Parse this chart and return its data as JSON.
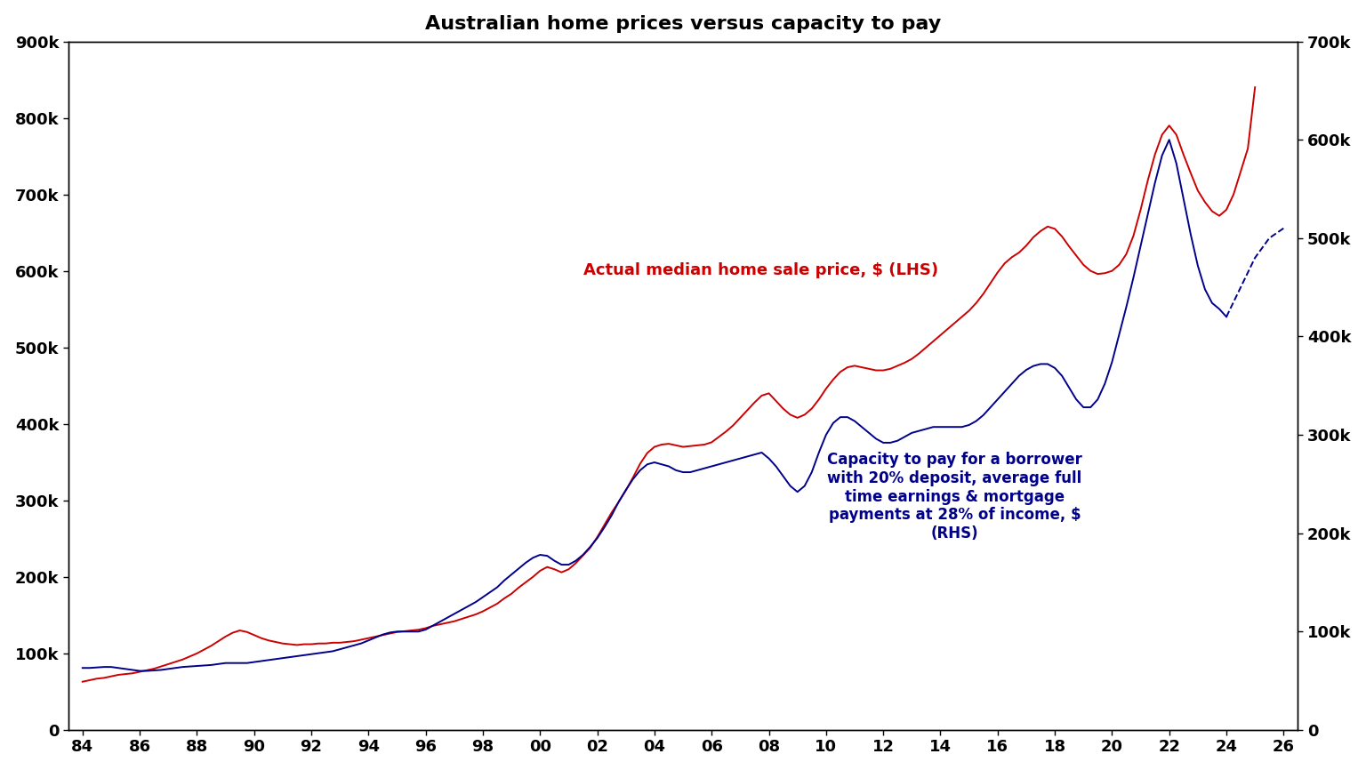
{
  "title": "Australian home prices versus capacity to pay",
  "title_fontsize": 16,
  "title_fontweight": "bold",
  "lhs_color": "#cc0000",
  "rhs_color": "#00008B",
  "lhs_label": "Actual median home sale price, $ (LHS)",
  "rhs_label": "Capacity to pay for a borrower\nwith 20% deposit, average full\ntime earnings & mortgage\npayments at 28% of income, $\n(RHS)",
  "lhs_ylim": [
    0,
    900000
  ],
  "rhs_ylim": [
    0,
    700000
  ],
  "lhs_yticks": [
    0,
    100000,
    200000,
    300000,
    400000,
    500000,
    600000,
    700000,
    800000,
    900000
  ],
  "rhs_yticks": [
    0,
    100000,
    200000,
    300000,
    400000,
    500000,
    600000,
    700000
  ],
  "xlim": [
    1983.5,
    2026.5
  ],
  "xtick_positions": [
    1984,
    1986,
    1988,
    1990,
    1992,
    1994,
    1996,
    1998,
    2000,
    2002,
    2004,
    2006,
    2008,
    2010,
    2012,
    2014,
    2016,
    2018,
    2020,
    2022,
    2024,
    2026
  ],
  "xtick_labels": [
    "84",
    "86",
    "88",
    "90",
    "92",
    "94",
    "96",
    "98",
    "00",
    "02",
    "04",
    "06",
    "08",
    "10",
    "12",
    "14",
    "16",
    "18",
    "20",
    "22",
    "24",
    "26"
  ],
  "background_color": "#ffffff",
  "lhs_x": [
    1984.0,
    1984.25,
    1984.5,
    1984.75,
    1985.0,
    1985.25,
    1985.5,
    1985.75,
    1986.0,
    1986.25,
    1986.5,
    1986.75,
    1987.0,
    1987.25,
    1987.5,
    1987.75,
    1988.0,
    1988.25,
    1988.5,
    1988.75,
    1989.0,
    1989.25,
    1989.5,
    1989.75,
    1990.0,
    1990.25,
    1990.5,
    1990.75,
    1991.0,
    1991.25,
    1991.5,
    1991.75,
    1992.0,
    1992.25,
    1992.5,
    1992.75,
    1993.0,
    1993.25,
    1993.5,
    1993.75,
    1994.0,
    1994.25,
    1994.5,
    1994.75,
    1995.0,
    1995.25,
    1995.5,
    1995.75,
    1996.0,
    1996.25,
    1996.5,
    1996.75,
    1997.0,
    1997.25,
    1997.5,
    1997.75,
    1998.0,
    1998.25,
    1998.5,
    1998.75,
    1999.0,
    1999.25,
    1999.5,
    1999.75,
    2000.0,
    2000.25,
    2000.5,
    2000.75,
    2001.0,
    2001.25,
    2001.5,
    2001.75,
    2002.0,
    2002.25,
    2002.5,
    2002.75,
    2003.0,
    2003.25,
    2003.5,
    2003.75,
    2004.0,
    2004.25,
    2004.5,
    2004.75,
    2005.0,
    2005.25,
    2005.5,
    2005.75,
    2006.0,
    2006.25,
    2006.5,
    2006.75,
    2007.0,
    2007.25,
    2007.5,
    2007.75,
    2008.0,
    2008.25,
    2008.5,
    2008.75,
    2009.0,
    2009.25,
    2009.5,
    2009.75,
    2010.0,
    2010.25,
    2010.5,
    2010.75,
    2011.0,
    2011.25,
    2011.5,
    2011.75,
    2012.0,
    2012.25,
    2012.5,
    2012.75,
    2013.0,
    2013.25,
    2013.5,
    2013.75,
    2014.0,
    2014.25,
    2014.5,
    2014.75,
    2015.0,
    2015.25,
    2015.5,
    2015.75,
    2016.0,
    2016.25,
    2016.5,
    2016.75,
    2017.0,
    2017.25,
    2017.5,
    2017.75,
    2018.0,
    2018.25,
    2018.5,
    2018.75,
    2019.0,
    2019.25,
    2019.5,
    2019.75,
    2020.0,
    2020.25,
    2020.5,
    2020.75,
    2021.0,
    2021.25,
    2021.5,
    2021.75,
    2022.0,
    2022.25,
    2022.5,
    2022.75,
    2023.0,
    2023.25,
    2023.5,
    2023.75,
    2024.0,
    2024.25,
    2024.5,
    2024.75,
    2025.0
  ],
  "lhs_y": [
    63000,
    65000,
    67000,
    68000,
    70000,
    72000,
    73000,
    74000,
    76000,
    78000,
    80000,
    83000,
    86000,
    89000,
    92000,
    96000,
    100000,
    105000,
    110000,
    116000,
    122000,
    127000,
    130000,
    128000,
    124000,
    120000,
    117000,
    115000,
    113000,
    112000,
    111000,
    112000,
    112000,
    113000,
    113000,
    114000,
    114000,
    115000,
    116000,
    118000,
    120000,
    122000,
    124000,
    126000,
    128000,
    129000,
    130000,
    131000,
    133000,
    136000,
    138000,
    140000,
    142000,
    145000,
    148000,
    151000,
    155000,
    160000,
    165000,
    172000,
    178000,
    186000,
    193000,
    200000,
    208000,
    213000,
    210000,
    206000,
    210000,
    218000,
    228000,
    238000,
    252000,
    268000,
    284000,
    298000,
    313000,
    330000,
    348000,
    362000,
    370000,
    373000,
    374000,
    372000,
    370000,
    371000,
    372000,
    373000,
    376000,
    383000,
    390000,
    398000,
    408000,
    418000,
    428000,
    437000,
    440000,
    430000,
    420000,
    412000,
    408000,
    412000,
    420000,
    432000,
    446000,
    458000,
    468000,
    474000,
    476000,
    474000,
    472000,
    470000,
    470000,
    472000,
    476000,
    480000,
    485000,
    492000,
    500000,
    508000,
    516000,
    524000,
    532000,
    540000,
    548000,
    558000,
    570000,
    584000,
    598000,
    610000,
    618000,
    624000,
    633000,
    644000,
    652000,
    658000,
    655000,
    645000,
    632000,
    620000,
    608000,
    600000,
    596000,
    597000,
    600000,
    608000,
    622000,
    646000,
    680000,
    718000,
    752000,
    778000,
    790000,
    778000,
    752000,
    728000,
    705000,
    690000,
    678000,
    672000,
    680000,
    700000,
    730000,
    760000,
    840000
  ],
  "rhs_x": [
    1984.0,
    1984.25,
    1984.5,
    1984.75,
    1985.0,
    1985.25,
    1985.5,
    1985.75,
    1986.0,
    1986.25,
    1986.5,
    1986.75,
    1987.0,
    1987.25,
    1987.5,
    1987.75,
    1988.0,
    1988.25,
    1988.5,
    1988.75,
    1989.0,
    1989.25,
    1989.5,
    1989.75,
    1990.0,
    1990.25,
    1990.5,
    1990.75,
    1991.0,
    1991.25,
    1991.5,
    1991.75,
    1992.0,
    1992.25,
    1992.5,
    1992.75,
    1993.0,
    1993.25,
    1993.5,
    1993.75,
    1994.0,
    1994.25,
    1994.5,
    1994.75,
    1995.0,
    1995.25,
    1995.5,
    1995.75,
    1996.0,
    1996.25,
    1996.5,
    1996.75,
    1997.0,
    1997.25,
    1997.5,
    1997.75,
    1998.0,
    1998.25,
    1998.5,
    1998.75,
    1999.0,
    1999.25,
    1999.5,
    1999.75,
    2000.0,
    2000.25,
    2000.5,
    2000.75,
    2001.0,
    2001.25,
    2001.5,
    2001.75,
    2002.0,
    2002.25,
    2002.5,
    2002.75,
    2003.0,
    2003.25,
    2003.5,
    2003.75,
    2004.0,
    2004.25,
    2004.5,
    2004.75,
    2005.0,
    2005.25,
    2005.5,
    2005.75,
    2006.0,
    2006.25,
    2006.5,
    2006.75,
    2007.0,
    2007.25,
    2007.5,
    2007.75,
    2008.0,
    2008.25,
    2008.5,
    2008.75,
    2009.0,
    2009.25,
    2009.5,
    2009.75,
    2010.0,
    2010.25,
    2010.5,
    2010.75,
    2011.0,
    2011.25,
    2011.5,
    2011.75,
    2012.0,
    2012.25,
    2012.5,
    2012.75,
    2013.0,
    2013.25,
    2013.5,
    2013.75,
    2014.0,
    2014.25,
    2014.5,
    2014.75,
    2015.0,
    2015.25,
    2015.5,
    2015.75,
    2016.0,
    2016.25,
    2016.5,
    2016.75,
    2017.0,
    2017.25,
    2017.5,
    2017.75,
    2018.0,
    2018.25,
    2018.5,
    2018.75,
    2019.0,
    2019.25,
    2019.5,
    2019.75,
    2020.0,
    2020.25,
    2020.5,
    2020.75,
    2021.0,
    2021.25,
    2021.5,
    2021.75,
    2022.0,
    2022.25,
    2022.5,
    2022.75,
    2023.0,
    2023.25,
    2023.5,
    2023.75,
    2024.0
  ],
  "rhs_y": [
    63000,
    63000,
    63500,
    64000,
    64000,
    63000,
    62000,
    61000,
    60000,
    60000,
    60500,
    61000,
    62000,
    63000,
    64000,
    64500,
    65000,
    65500,
    66000,
    67000,
    68000,
    68000,
    68000,
    68000,
    69000,
    70000,
    71000,
    72000,
    73000,
    74000,
    75000,
    76000,
    77000,
    78000,
    79000,
    80000,
    82000,
    84000,
    86000,
    88000,
    91000,
    94000,
    97000,
    99000,
    100000,
    100000,
    100000,
    100000,
    102000,
    106000,
    110000,
    114000,
    118000,
    122000,
    126000,
    130000,
    135000,
    140000,
    145000,
    152000,
    158000,
    164000,
    170000,
    175000,
    178000,
    177000,
    172000,
    168000,
    168000,
    172000,
    178000,
    186000,
    195000,
    206000,
    218000,
    232000,
    244000,
    255000,
    264000,
    270000,
    272000,
    270000,
    268000,
    264000,
    262000,
    262000,
    264000,
    266000,
    268000,
    270000,
    272000,
    274000,
    276000,
    278000,
    280000,
    282000,
    276000,
    268000,
    258000,
    248000,
    242000,
    248000,
    262000,
    282000,
    300000,
    312000,
    318000,
    318000,
    314000,
    308000,
    302000,
    296000,
    292000,
    292000,
    294000,
    298000,
    302000,
    304000,
    306000,
    308000,
    308000,
    308000,
    308000,
    308000,
    310000,
    314000,
    320000,
    328000,
    336000,
    344000,
    352000,
    360000,
    366000,
    370000,
    372000,
    372000,
    368000,
    360000,
    348000,
    336000,
    328000,
    328000,
    336000,
    352000,
    374000,
    402000,
    430000,
    460000,
    492000,
    524000,
    556000,
    584000,
    600000,
    576000,
    540000,
    504000,
    472000,
    448000,
    434000,
    428000,
    420000
  ],
  "rhs_dash_x": [
    2024.0,
    2024.5,
    2025.0,
    2025.5,
    2026.0
  ],
  "rhs_dash_y": [
    420000,
    450000,
    480000,
    500000,
    510000
  ]
}
